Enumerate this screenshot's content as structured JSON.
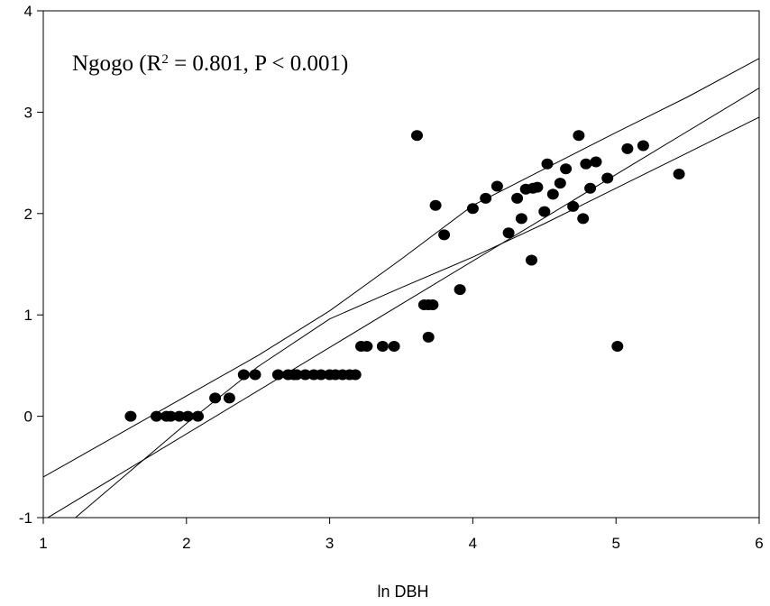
{
  "chart_data": {
    "type": "scatter",
    "title": "",
    "xlabel": "ln DBH",
    "ylabel": "",
    "xlim": [
      1,
      6
    ],
    "ylim": [
      -1,
      4
    ],
    "xticks": [
      1,
      2,
      3,
      4,
      5,
      6
    ],
    "yticks": [
      -1,
      0,
      1,
      2,
      3,
      4
    ],
    "grid": false,
    "annotation": {
      "site": "Ngogo (R",
      "sup": "2",
      "stats": " = 0.801, P < 0.001)"
    },
    "point_color": "#000000",
    "points": [
      [
        1.61,
        0.0
      ],
      [
        1.79,
        0.0
      ],
      [
        1.86,
        0.0
      ],
      [
        1.89,
        0.0
      ],
      [
        1.95,
        0.0
      ],
      [
        2.01,
        0.0
      ],
      [
        2.08,
        0.0
      ],
      [
        2.2,
        0.18
      ],
      [
        2.3,
        0.18
      ],
      [
        2.4,
        0.41
      ],
      [
        2.48,
        0.41
      ],
      [
        2.64,
        0.41
      ],
      [
        2.71,
        0.41
      ],
      [
        2.75,
        0.41
      ],
      [
        2.77,
        0.41
      ],
      [
        2.83,
        0.41
      ],
      [
        2.89,
        0.41
      ],
      [
        2.94,
        0.41
      ],
      [
        3.0,
        0.41
      ],
      [
        3.04,
        0.41
      ],
      [
        3.09,
        0.41
      ],
      [
        3.14,
        0.41
      ],
      [
        3.18,
        0.41
      ],
      [
        3.22,
        0.69
      ],
      [
        3.26,
        0.69
      ],
      [
        3.37,
        0.69
      ],
      [
        3.45,
        0.69
      ],
      [
        3.61,
        2.77
      ],
      [
        3.66,
        1.1
      ],
      [
        3.69,
        0.78
      ],
      [
        3.69,
        1.1
      ],
      [
        3.72,
        1.1
      ],
      [
        3.74,
        2.08
      ],
      [
        3.8,
        1.79
      ],
      [
        3.91,
        1.25
      ],
      [
        4.0,
        2.05
      ],
      [
        4.09,
        2.15
      ],
      [
        4.17,
        2.27
      ],
      [
        4.25,
        1.81
      ],
      [
        4.31,
        2.15
      ],
      [
        4.34,
        1.95
      ],
      [
        4.37,
        2.24
      ],
      [
        4.41,
        1.54
      ],
      [
        4.42,
        2.25
      ],
      [
        4.45,
        2.26
      ],
      [
        4.5,
        2.02
      ],
      [
        4.52,
        2.49
      ],
      [
        4.56,
        2.19
      ],
      [
        4.61,
        2.3
      ],
      [
        4.65,
        2.44
      ],
      [
        4.7,
        2.07
      ],
      [
        4.74,
        2.77
      ],
      [
        4.77,
        1.95
      ],
      [
        4.79,
        2.49
      ],
      [
        4.82,
        2.25
      ],
      [
        4.86,
        2.51
      ],
      [
        4.94,
        2.35
      ],
      [
        5.01,
        0.69
      ],
      [
        5.08,
        2.64
      ],
      [
        5.19,
        2.67
      ],
      [
        5.44,
        2.39
      ]
    ],
    "regression": {
      "intercept": -1.88,
      "slope": 0.853
    },
    "confidence_band": {
      "x": [
        1.0,
        1.5,
        2.0,
        2.5,
        3.0,
        3.5,
        4.0,
        4.5,
        5.0,
        5.5,
        6.0
      ],
      "upper": [
        -0.6,
        -0.2,
        0.2,
        0.6,
        1.04,
        1.55,
        2.08,
        2.44,
        2.8,
        3.15,
        3.53
      ],
      "lower": [
        -1.27,
        -0.67,
        -0.07,
        0.49,
        0.96,
        1.27,
        1.57,
        1.9,
        2.25,
        2.6,
        2.95
      ]
    }
  }
}
